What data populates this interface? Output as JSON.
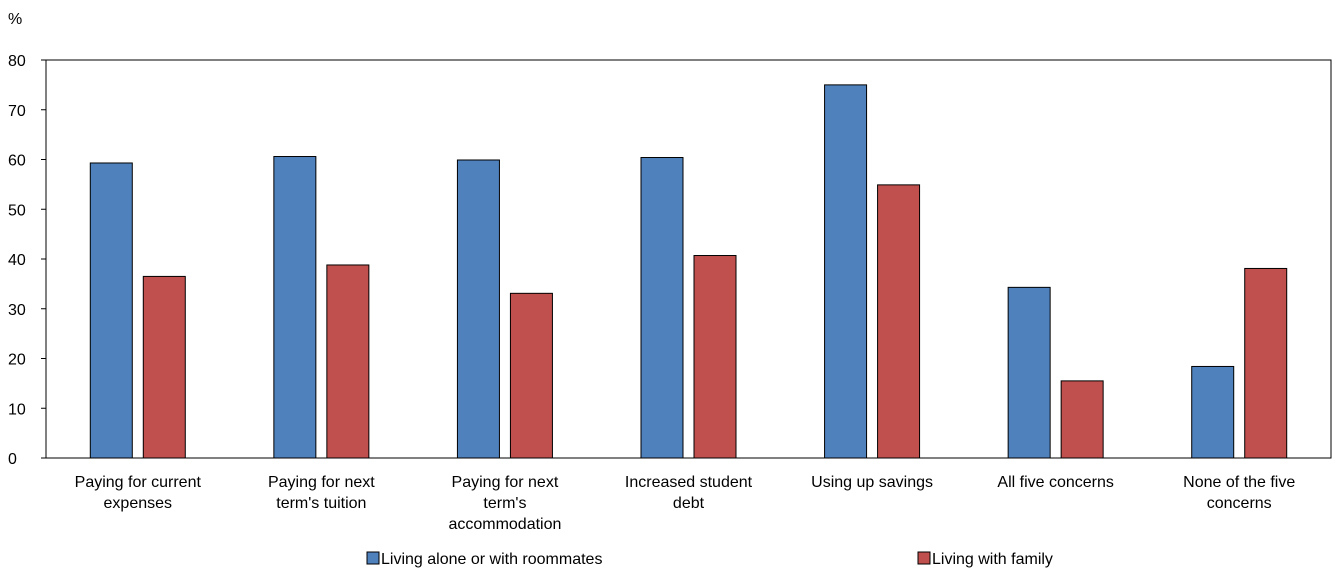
{
  "chart_data": {
    "type": "bar",
    "ylabel": "%",
    "ylim": [
      0,
      80
    ],
    "yticks": [
      "0",
      "10",
      "20",
      "30",
      "40",
      "50",
      "60",
      "70",
      "80"
    ],
    "categories": [
      [
        "Paying for current",
        "expenses"
      ],
      [
        "Paying for next",
        "term's tuition"
      ],
      [
        "Paying for next",
        "term's",
        "accommodation"
      ],
      [
        "Increased student",
        "debt"
      ],
      [
        "Using up savings"
      ],
      [
        "All five concerns"
      ],
      [
        "None of the five",
        "concerns"
      ]
    ],
    "series": [
      {
        "name": "Living alone or with roommates",
        "color": "#4F81BD",
        "values": [
          59.3,
          60.6,
          59.9,
          60.4,
          75.0,
          34.3,
          18.4
        ]
      },
      {
        "name": "Living with family",
        "color": "#C0504D",
        "values": [
          36.5,
          38.8,
          33.1,
          40.7,
          54.9,
          15.5,
          38.1
        ]
      }
    ],
    "grid": false,
    "legend_position": "bottom"
  }
}
